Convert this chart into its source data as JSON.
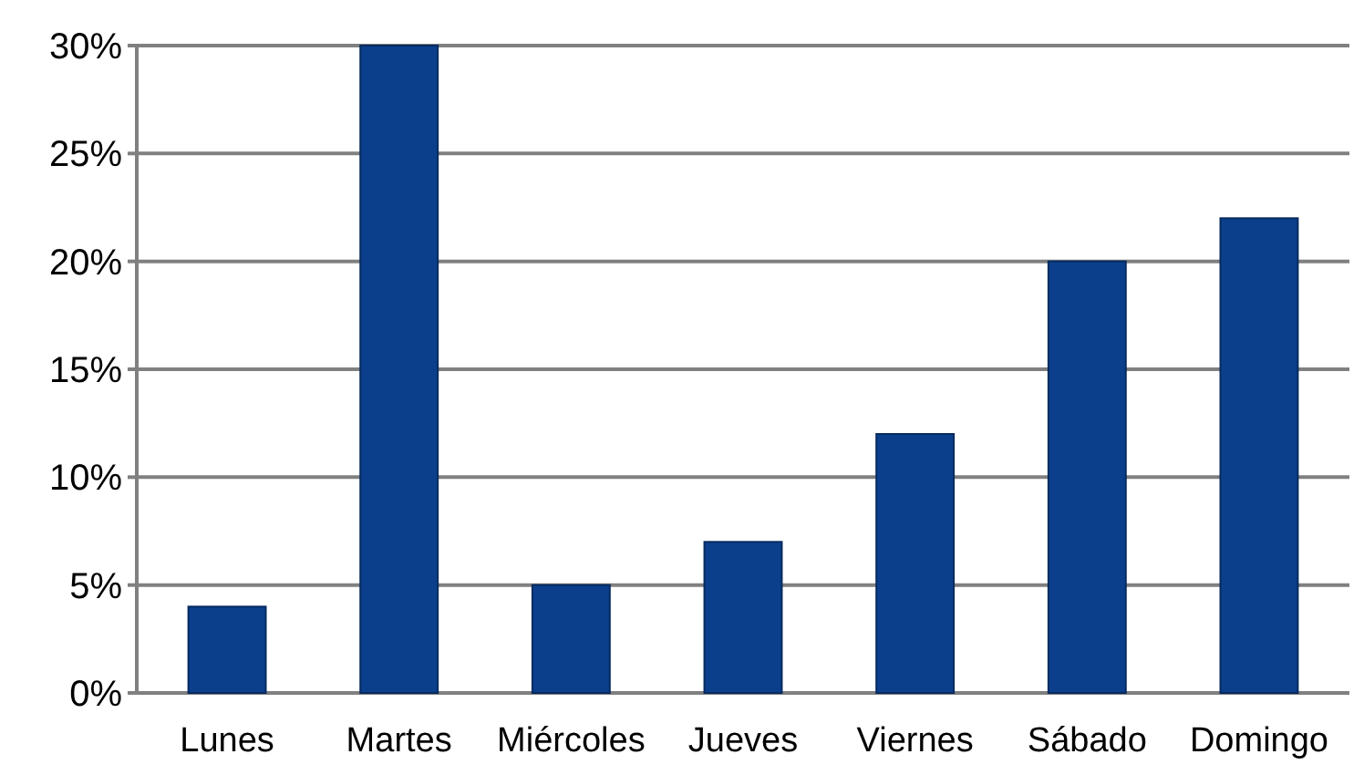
{
  "chart_data": {
    "type": "bar",
    "categories": [
      "Lunes",
      "Martes",
      "Miércoles",
      "Jueves",
      "Viernes",
      "Sábado",
      "Domingo"
    ],
    "values": [
      4,
      30,
      5,
      7,
      12,
      20,
      22
    ],
    "color": "#0b3f8c",
    "ylim": [
      0,
      30
    ],
    "yticks": [
      {
        "value": 0,
        "label": "0%"
      },
      {
        "value": 5,
        "label": "5%"
      },
      {
        "value": 10,
        "label": "10%"
      },
      {
        "value": 15,
        "label": "15%"
      },
      {
        "value": 20,
        "label": "20%"
      },
      {
        "value": 25,
        "label": "25%"
      },
      {
        "value": 30,
        "label": "30%"
      }
    ],
    "grid": "y"
  }
}
